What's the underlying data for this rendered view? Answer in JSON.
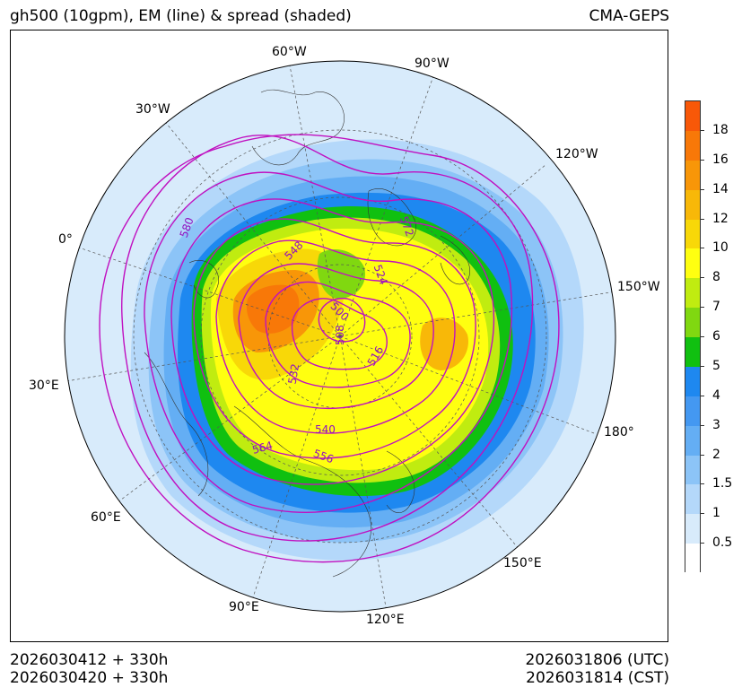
{
  "header": {
    "title": "gh500 (10gpm), EM (line) & spread (shaded)",
    "source": "CMA-GEPS"
  },
  "footer": {
    "init_utc": "2026030412 + 330h",
    "init_cst": "2026030420 + 330h",
    "valid_utc": "2026031806 (UTC)",
    "valid_cst": "2026031814 (CST)"
  },
  "map": {
    "projection": "north polar stereographic",
    "longitude_labels": [
      "60°W",
      "90°W",
      "30°W",
      "120°W",
      "0°",
      "150°W",
      "30°E",
      "180°",
      "60°E",
      "150°E",
      "90°E",
      "120°E"
    ],
    "contour_labels": [
      "580",
      "548",
      "572",
      "524",
      "500",
      "508",
      "516",
      "532",
      "540",
      "564",
      "556"
    ],
    "contour_color": "#c010c0",
    "coastline_color": "#333333"
  },
  "colorbar": {
    "ticks": [
      "0.5",
      "1",
      "1.5",
      "2",
      "3",
      "4",
      "5",
      "6",
      "7",
      "8",
      "10",
      "12",
      "14",
      "16",
      "18"
    ],
    "colors": [
      "#ffffff",
      "#d8ebfb",
      "#b4d8fa",
      "#8cc4f7",
      "#64aef4",
      "#4498f1",
      "#1e88f0",
      "#10c010",
      "#80d810",
      "#c0ec10",
      "#ffff10",
      "#f8d808",
      "#f8b808",
      "#f89608",
      "#f87808",
      "#f85808"
    ]
  }
}
